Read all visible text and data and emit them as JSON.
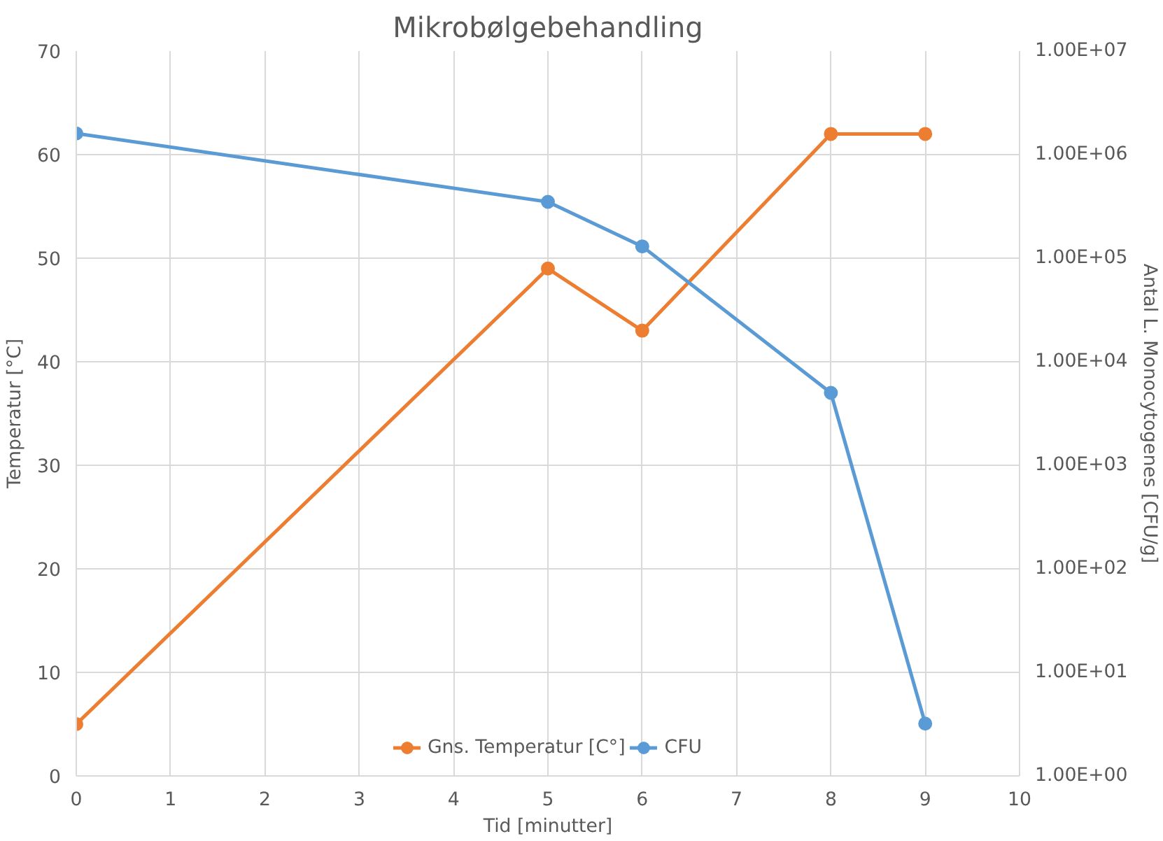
{
  "chart_data": {
    "type": "line",
    "title": "Mikrobølgebehandling",
    "xlabel": "Tid [minutter]",
    "ylabel": "Temperatur [°C]",
    "y2label": "Antal L. Monocytogenes [CFU/g]",
    "x": [
      0,
      5,
      6,
      8,
      9
    ],
    "series": [
      {
        "name": "Gns. Temperatur [C°]",
        "color": "#ed7d31",
        "values": [
          5,
          49,
          43,
          62,
          62
        ]
      },
      {
        "name": "CFU",
        "color": "#5b9bd5",
        "values": [
          1600000,
          350000,
          130000,
          5000,
          3.2
        ],
        "axis": "y2"
      }
    ],
    "xlim": [
      0,
      10
    ],
    "xticks": [
      0,
      1,
      2,
      3,
      4,
      5,
      6,
      7,
      8,
      9,
      10
    ],
    "ylim": [
      0,
      70
    ],
    "yticks": [
      0,
      10,
      20,
      30,
      40,
      50,
      60,
      70
    ],
    "y2lim": [
      1,
      10000000
    ],
    "y2ticks": [
      {
        "value": 1,
        "label": "1.00E+00"
      },
      {
        "value": 10,
        "label": "1.00E+01"
      },
      {
        "value": 100,
        "label": "1.00E+02"
      },
      {
        "value": 1000,
        "label": "1.00E+03"
      },
      {
        "value": 10000,
        "label": "1.00E+04"
      },
      {
        "value": 100000,
        "label": "1.00E+05"
      },
      {
        "value": 1000000,
        "label": "1.00E+06"
      },
      {
        "value": 10000000,
        "label": "1.00E+07"
      }
    ],
    "log": "y2",
    "grid": true,
    "legend": "bottom",
    "marker": "circle",
    "line_style": "solid"
  }
}
